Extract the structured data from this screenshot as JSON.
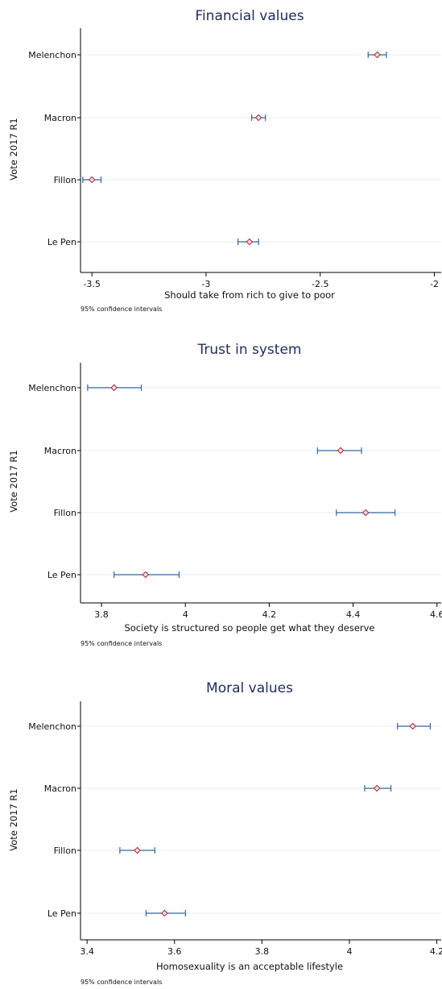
{
  "chart_data": [
    {
      "type": "scatter",
      "title": "Financial values",
      "xlabel": "Should take from rich to give to poor",
      "ylabel": "Vote 2017 R1",
      "note": "95% confidence intervals",
      "xlim": [
        -3.55,
        -1.97
      ],
      "xticks": [
        -3.5,
        -3,
        -2.5,
        -2
      ],
      "xtick_labels": [
        "-3.5",
        "-3",
        "-2.5",
        "-2"
      ],
      "categories": [
        "Melenchon",
        "Macron",
        "Fillon",
        "Le Pen"
      ],
      "estimates": [
        -2.25,
        -2.77,
        -3.5,
        -2.81
      ],
      "ci_low": [
        -2.29,
        -2.8,
        -3.54,
        -2.86
      ],
      "ci_high": [
        -2.21,
        -2.74,
        -3.46,
        -2.77
      ],
      "colors": {
        "marker": "#b11d2a",
        "ci": "#2f67a4",
        "title": "#1f2d63"
      }
    },
    {
      "type": "scatter",
      "title": "Trust in system",
      "xlabel": "Society is structured so people get what they deserve",
      "ylabel": "Vote 2017 R1",
      "note": "95% confidence intervals",
      "xlim": [
        3.75,
        4.61
      ],
      "xticks": [
        3.8,
        4,
        4.2,
        4.4,
        4.6
      ],
      "xtick_labels": [
        "3.8",
        "4",
        "4.2",
        "4.4",
        "4.6"
      ],
      "categories": [
        "Melenchon",
        "Macron",
        "Fillon",
        "Le Pen"
      ],
      "estimates": [
        3.83,
        4.37,
        4.43,
        3.905
      ],
      "ci_low": [
        3.767,
        4.315,
        4.36,
        3.83
      ],
      "ci_high": [
        3.895,
        4.42,
        4.5,
        3.985
      ],
      "colors": {
        "marker": "#b11d2a",
        "ci": "#2f67a4",
        "title": "#1f2d63"
      }
    },
    {
      "type": "scatter",
      "title": "Moral values",
      "xlabel": "Homosexuality is an acceptable lifestyle",
      "ylabel": "Vote 2017 R1",
      "note": "95% confidence intervals",
      "xlim": [
        3.385,
        4.21
      ],
      "xticks": [
        3.4,
        3.6,
        3.8,
        4,
        4.2
      ],
      "xtick_labels": [
        "3.4",
        "3.6",
        "3.8",
        "4",
        "4.2"
      ],
      "categories": [
        "Melenchon",
        "Macron",
        "Fillon",
        "Le Pen"
      ],
      "estimates": [
        4.145,
        4.063,
        3.515,
        3.577
      ],
      "ci_low": [
        4.11,
        4.035,
        3.475,
        3.535
      ],
      "ci_high": [
        4.185,
        4.095,
        3.555,
        3.625
      ],
      "colors": {
        "marker": "#b11d2a",
        "ci": "#2f67a4",
        "title": "#1f2d63"
      }
    }
  ]
}
